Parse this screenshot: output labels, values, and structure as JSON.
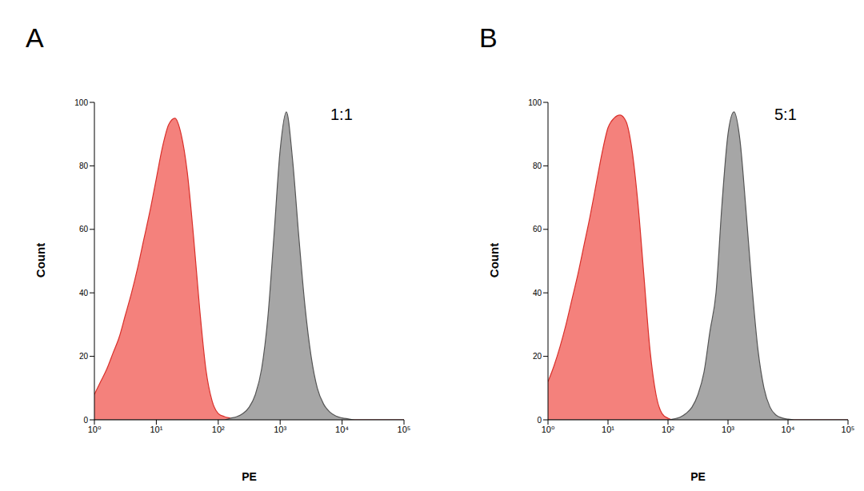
{
  "chart_data": [
    {
      "type": "area",
      "title": "A",
      "annotation": "1:1",
      "x_label": "PE",
      "y_label": "Count",
      "log": "x",
      "xlim": [
        1,
        100000
      ],
      "xticks": [
        {
          "value": 1,
          "label": "10⁰"
        },
        {
          "value": 10,
          "label": "10¹"
        },
        {
          "value": 100,
          "label": "10²"
        },
        {
          "value": 1000,
          "label": "10³"
        },
        {
          "value": 10000,
          "label": "10⁴"
        },
        {
          "value": 100000,
          "label": "10⁵"
        }
      ],
      "ylim": [
        0,
        100
      ],
      "yticks": [
        0,
        20,
        40,
        60,
        80,
        100
      ],
      "x": [
        1,
        1.259,
        1.585,
        1.995,
        2.512,
        3.162,
        3.981,
        5.012,
        6.31,
        7.943,
        10,
        12.59,
        15.85,
        19.95,
        25.12,
        31.62,
        39.81,
        50.12,
        63.1,
        79.43,
        100,
        125.9,
        158.5,
        199.5,
        251.2,
        316.2,
        398.1,
        501.2,
        631,
        794.3,
        1000,
        1259,
        1585,
        1995,
        2512,
        3162,
        3981,
        5012,
        6310,
        7943,
        10000,
        12590,
        15850,
        19950,
        25120,
        31620,
        39810,
        50120,
        63100,
        79430,
        100000
      ],
      "series": [
        {
          "color": "#f4817c",
          "values": [
            8,
            12,
            16,
            21,
            26,
            33,
            40,
            48,
            57,
            66,
            76,
            86,
            93,
            95,
            90,
            78,
            58,
            35,
            16,
            6,
            2,
            1,
            0.5,
            0,
            0,
            0,
            0,
            0,
            0,
            0,
            0,
            0,
            0,
            0,
            0,
            0,
            0,
            0,
            0,
            0,
            0,
            0,
            0,
            0,
            0,
            0,
            0,
            0,
            0,
            0,
            0
          ]
        },
        {
          "color": "#a6a6a6",
          "values": [
            0,
            0,
            0,
            0,
            0,
            0,
            0,
            0,
            0,
            0,
            0,
            0,
            0,
            0,
            0,
            0,
            0,
            0,
            0,
            0,
            0,
            0,
            0.5,
            1,
            2,
            4,
            8,
            16,
            32,
            58,
            85,
            97,
            82,
            58,
            36,
            20,
            10,
            5,
            2.5,
            1.2,
            0.6,
            0.3,
            0,
            0,
            0,
            0,
            0,
            0,
            0,
            0,
            0
          ]
        }
      ]
    },
    {
      "type": "area",
      "title": "B",
      "annotation": "5:1",
      "x_label": "PE",
      "y_label": "Count",
      "log": "x",
      "xlim": [
        1,
        100000
      ],
      "xticks": [
        {
          "value": 1,
          "label": "10⁰"
        },
        {
          "value": 10,
          "label": "10¹"
        },
        {
          "value": 100,
          "label": "10²"
        },
        {
          "value": 1000,
          "label": "10³"
        },
        {
          "value": 10000,
          "label": "10⁴"
        },
        {
          "value": 100000,
          "label": "10⁵"
        }
      ],
      "ylim": [
        0,
        100
      ],
      "yticks": [
        0,
        20,
        40,
        60,
        80,
        100
      ],
      "x": [
        1,
        1.259,
        1.585,
        1.995,
        2.512,
        3.162,
        3.981,
        5.012,
        6.31,
        7.943,
        10,
        12.59,
        15.85,
        19.95,
        25.12,
        31.62,
        39.81,
        50.12,
        63.1,
        79.43,
        100,
        125.9,
        158.5,
        199.5,
        251.2,
        316.2,
        398.1,
        501.2,
        631,
        794.3,
        1000,
        1259,
        1585,
        1995,
        2512,
        3162,
        3981,
        5012,
        6310,
        7943,
        10000,
        12590,
        15850,
        19950,
        25120,
        31620,
        39810,
        50120,
        63100,
        79430,
        100000
      ],
      "series": [
        {
          "color": "#f4817c",
          "values": [
            12,
            17,
            23,
            30,
            38,
            46,
            55,
            64,
            74,
            84,
            92,
            95,
            96,
            94,
            85,
            68,
            45,
            22,
            8,
            2,
            0.5,
            0,
            0,
            0,
            0,
            0,
            0,
            0,
            0,
            0,
            0,
            0,
            0,
            0,
            0,
            0,
            0,
            0,
            0,
            0,
            0,
            0,
            0,
            0,
            0,
            0,
            0,
            0,
            0,
            0,
            0
          ]
        },
        {
          "color": "#a6a6a6",
          "values": [
            0,
            0,
            0,
            0,
            0,
            0,
            0,
            0,
            0,
            0,
            0,
            0,
            0,
            0,
            0,
            0,
            0,
            0,
            0,
            0,
            0,
            0.3,
            0.8,
            2,
            4,
            8,
            15,
            28,
            40,
            68,
            90,
            97,
            88,
            66,
            42,
            22,
            10,
            4,
            1.5,
            0.6,
            0.2,
            0,
            0,
            0,
            0,
            0,
            0,
            0,
            0,
            0,
            0
          ]
        }
      ]
    }
  ]
}
